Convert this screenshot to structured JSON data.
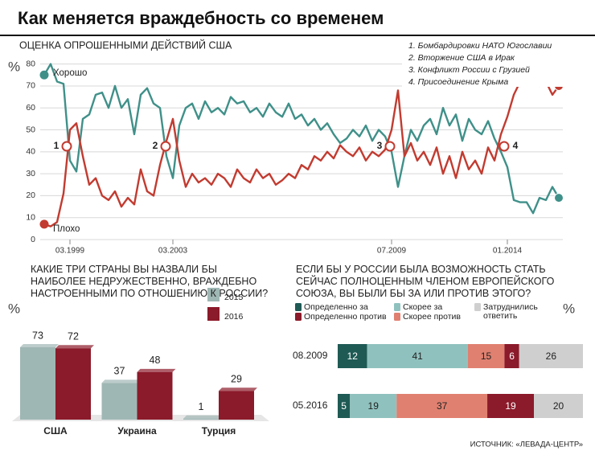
{
  "title": "Как меняется враждебность со временем",
  "source": "ИСТОЧНИК: «ЛЕВАДА-ЦЕНТР»",
  "chart_data": [
    {
      "type": "line",
      "subtitle": "ОЦЕНКА ОПРОШЕННЫМИ ДЕЙСТВИЙ США",
      "y_label": "%",
      "categories": [
        null,
        null,
        null,
        null,
        "03.1999",
        null,
        null,
        null,
        null,
        null,
        null,
        null,
        null,
        null,
        null,
        null,
        null,
        null,
        null,
        null,
        "03.2003",
        null,
        null,
        null,
        null,
        null,
        null,
        null,
        null,
        null,
        null,
        null,
        null,
        null,
        null,
        null,
        null,
        null,
        null,
        null,
        null,
        null,
        null,
        null,
        null,
        null,
        null,
        null,
        null,
        null,
        null,
        null,
        null,
        null,
        "07.2009",
        null,
        null,
        null,
        null,
        null,
        null,
        null,
        null,
        null,
        null,
        null,
        null,
        null,
        null,
        null,
        null,
        null,
        "01.2014",
        null,
        null,
        null,
        null,
        null,
        null,
        null,
        null
      ],
      "series": [
        {
          "name": "Хорошо",
          "color": "#3f9089",
          "values": [
            75,
            80,
            72,
            71,
            36,
            31,
            55,
            57,
            66,
            67,
            60,
            70,
            60,
            64,
            48,
            66,
            69,
            62,
            60,
            38,
            28,
            52,
            60,
            62,
            55,
            63,
            58,
            60,
            57,
            65,
            62,
            63,
            58,
            60,
            56,
            62,
            58,
            56,
            62,
            55,
            57,
            52,
            55,
            50,
            53,
            48,
            44,
            46,
            50,
            47,
            52,
            45,
            50,
            47,
            40,
            24,
            38,
            50,
            45,
            52,
            55,
            48,
            60,
            52,
            57,
            45,
            55,
            50,
            48,
            54,
            46,
            40,
            33,
            18,
            17,
            17,
            12,
            19,
            18,
            24,
            19
          ]
        },
        {
          "name": "Плохо",
          "color": "#c23b30",
          "values": [
            7,
            6,
            8,
            21,
            50,
            53,
            38,
            25,
            28,
            20,
            18,
            22,
            15,
            19,
            16,
            32,
            22,
            20,
            34,
            45,
            55,
            36,
            24,
            30,
            26,
            28,
            25,
            30,
            28,
            24,
            32,
            28,
            26,
            32,
            28,
            30,
            25,
            27,
            30,
            28,
            34,
            32,
            38,
            36,
            40,
            37,
            43,
            40,
            38,
            42,
            36,
            40,
            38,
            41,
            50,
            68,
            38,
            44,
            36,
            40,
            34,
            42,
            30,
            38,
            28,
            40,
            32,
            36,
            30,
            42,
            36,
            48,
            56,
            66,
            72,
            73,
            80,
            70,
            72,
            66,
            70
          ]
        }
      ],
      "ylim": [
        0,
        85
      ],
      "yticks": [
        0,
        10,
        20,
        30,
        40,
        50,
        60,
        70,
        80
      ],
      "grid": true,
      "event_markers": [
        "1",
        "2",
        "3",
        "4"
      ],
      "events": [
        "1. Бомбардировки НАТО Югославии",
        "2. Вторжение США в Ирак",
        "3. Конфликт России с Грузией",
        "4. Присоединение Крыма"
      ]
    },
    {
      "type": "bar",
      "title": "КАКИЕ ТРИ СТРАНЫ ВЫ НАЗВАЛИ БЫ НАИБОЛЕЕ НЕДРУЖЕСТВЕННО, ВРАЖДЕБНО НАСТРОЕННЫМИ ПО ОТНОШЕНИЮ К РОССИИ?",
      "y_label": "%",
      "categories": [
        "США",
        "Украина",
        "Турция"
      ],
      "series": [
        {
          "name": "2015",
          "color": "#9fb7b4",
          "values": [
            73,
            37,
            1
          ]
        },
        {
          "name": "2016",
          "color": "#8b1a2a",
          "values": [
            72,
            48,
            29
          ]
        }
      ]
    },
    {
      "type": "stacked_bar",
      "title": "ЕСЛИ БЫ У РОССИИ БЫЛА ВОЗМОЖНОСТЬ СТАТЬ СЕЙЧАС ПОЛНОЦЕННЫМ ЧЛЕНОМ ЕВРОПЕЙСКОГО СОЮЗА, ВЫ БЫЛИ БЫ ЗА ИЛИ ПРОТИВ ЭТОГО?",
      "y_label": "%",
      "categories": [
        "08.2009",
        "05.2016"
      ],
      "series": [
        {
          "name": "Определенно за",
          "color": "#1f5a55",
          "values": [
            12,
            5
          ]
        },
        {
          "name": "Скорее за",
          "color": "#8fc2bf",
          "values": [
            41,
            19
          ]
        },
        {
          "name": "Скорее против",
          "color": "#e08070",
          "values": [
            15,
            37
          ]
        },
        {
          "name": "Определенно против",
          "color": "#8b1a2a",
          "values": [
            6,
            19
          ]
        },
        {
          "name": "Затруднились ответить",
          "color": "#cfcfcf",
          "values": [
            26,
            20
          ]
        }
      ]
    }
  ]
}
